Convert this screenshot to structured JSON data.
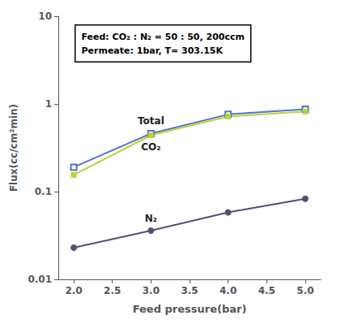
{
  "chart_data": {
    "type": "line",
    "log": "y",
    "grid": false,
    "xlabel": "Feed pressure(bar)",
    "ylabel": "Flux(cc/cm²min)",
    "x": [
      2.0,
      3.0,
      4.0,
      5.0
    ],
    "series": [
      {
        "name": "Total",
        "marker": "open_square",
        "values": [
          0.19,
          0.46,
          0.76,
          0.87
        ]
      },
      {
        "name": "CO₂",
        "marker": "square",
        "values": [
          0.155,
          0.44,
          0.72,
          0.82
        ]
      },
      {
        "name": "N₂",
        "marker": "circle",
        "values": [
          0.023,
          0.036,
          0.058,
          0.083
        ]
      }
    ],
    "xlim": [
      1.8,
      5.2
    ],
    "xticks": [
      {
        "value": 2.0,
        "label": "2.0"
      },
      2.5,
      {
        "value": 3.0,
        "label": "3.0"
      },
      3.5,
      {
        "value": 4.0,
        "label": "4.0"
      },
      4.5,
      {
        "value": 5.0,
        "label": "5.0"
      }
    ],
    "ylim": [
      0.01,
      10
    ],
    "yticks": [
      0.01,
      0.1,
      1,
      10
    ],
    "annotations": [
      "Feed: CO₂ : N₂ = 50 : 50, 200ccm",
      "Permeate: 1bar, T= 303.15K"
    ]
  }
}
